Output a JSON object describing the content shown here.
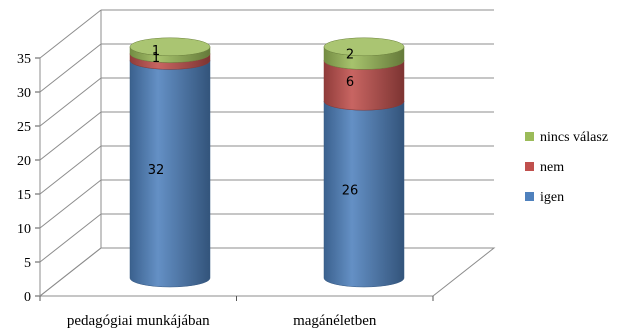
{
  "chart_data": {
    "type": "bar",
    "stacked": true,
    "style": "3d-cylinder",
    "categories": [
      "pedagógiai munkájában",
      "magánéletben"
    ],
    "series": [
      {
        "name": "igen",
        "values": [
          32,
          26
        ],
        "color": "#4F81BD"
      },
      {
        "name": "nem",
        "values": [
          1,
          6
        ],
        "color": "#C0504D"
      },
      {
        "name": "nincs válasz",
        "values": [
          1,
          2
        ],
        "color": "#9BBB59"
      }
    ],
    "ylim": [
      0,
      35
    ],
    "yticks": [
      0,
      5,
      10,
      15,
      20,
      25,
      30,
      35
    ],
    "grid": true,
    "legend": "right",
    "title": "",
    "xlabel": "",
    "ylabel": ""
  }
}
